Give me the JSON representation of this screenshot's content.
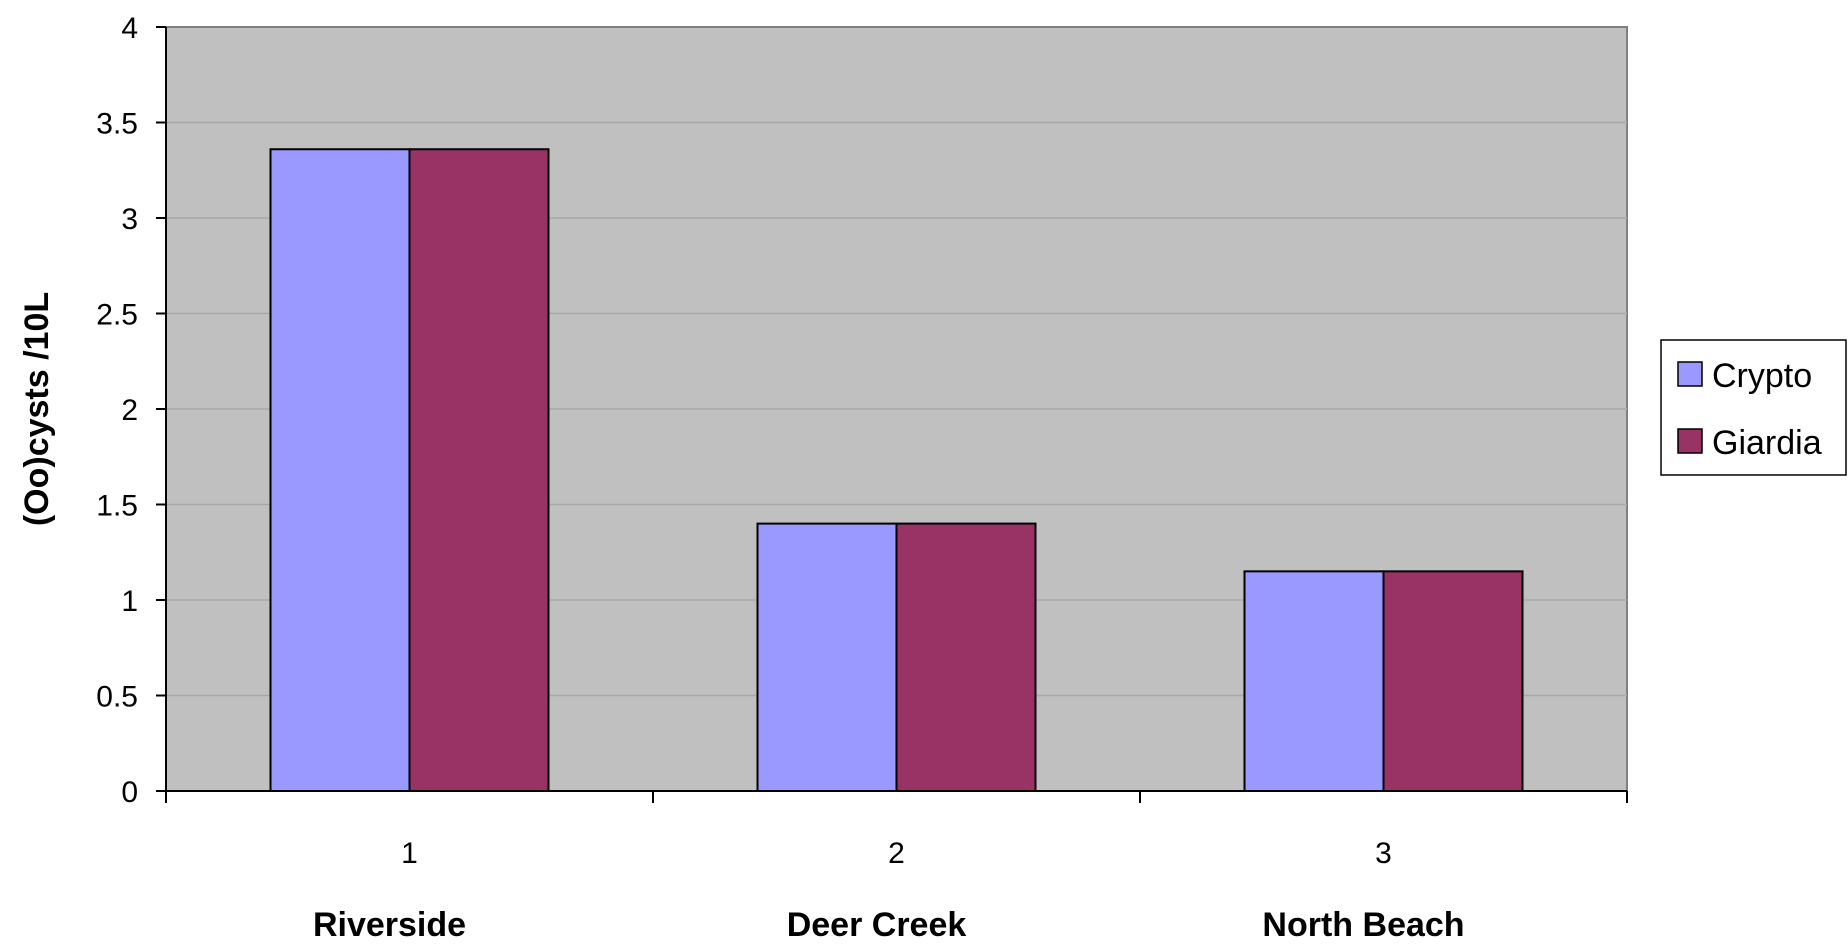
{
  "chart_data": {
    "type": "bar",
    "x_ticks": [
      "1",
      "2",
      "3"
    ],
    "categories": [
      "Riverside",
      "Deer Creek",
      "North Beach"
    ],
    "series": [
      {
        "name": "Crypto",
        "values": [
          3.36,
          1.4,
          1.15
        ],
        "color": "#9999ff"
      },
      {
        "name": "Giardia",
        "values": [
          3.36,
          1.4,
          1.15
        ],
        "color": "#993366"
      }
    ],
    "ylabel": "(Oo)cysts /10L",
    "ylim": [
      0,
      4
    ],
    "yticks": [
      "0",
      "0.5",
      "1",
      "1.5",
      "2",
      "2.5",
      "3",
      "3.5",
      "4"
    ],
    "grid": true,
    "legend": "right",
    "plot_background": "#c0c0c0"
  }
}
